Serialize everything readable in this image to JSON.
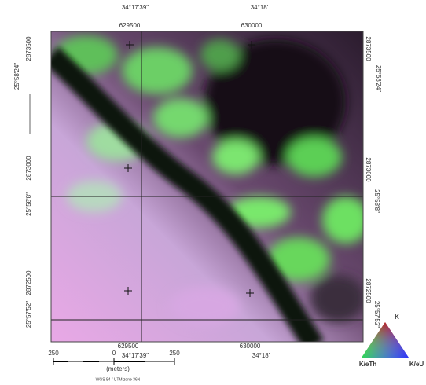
{
  "frame": {
    "top": [
      "34°17'39\"",
      "629500",
      "630000",
      "34°18'"
    ],
    "bottom": [
      "629500",
      "34°17'39\"",
      "630000",
      "34°18'"
    ],
    "left": [
      "2873500",
      "25°58'24\"",
      "2873000",
      "25°58'8\"",
      "2872500",
      "25°57'52\""
    ],
    "right": [
      "2873500",
      "25°58'24\"",
      "2873000",
      "25°58'8\"",
      "2872500",
      "25°57'52\""
    ]
  },
  "scale_bar": {
    "ticks": [
      "250",
      "0",
      "250"
    ],
    "unit": "(meters)",
    "projection": "WGS 84 / UTM zone 36N"
  },
  "legend": {
    "top": "K",
    "left": "K/eTh",
    "right": "K/eU"
  }
}
